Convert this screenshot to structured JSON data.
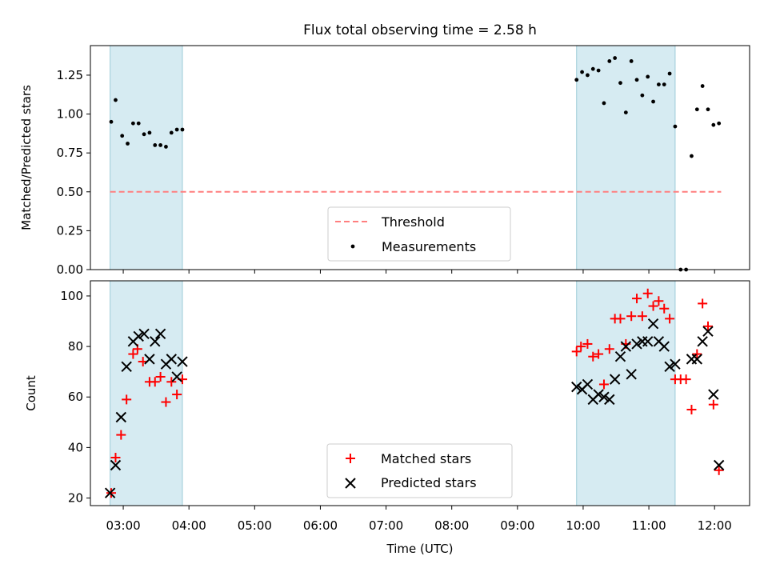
{
  "chart_data": [
    {
      "type": "scatter",
      "title": "Flux total observing time = 2.58 h",
      "ylabel": "Matched/Predicted stars",
      "xlabel": "",
      "xlim": [
        "02:30",
        "12:32"
      ],
      "ylim": [
        0,
        1.44
      ],
      "yticks": [
        "0.00",
        "0.25",
        "0.50",
        "0.75",
        "1.00",
        "1.25"
      ],
      "shaded_intervals": [
        [
          "02:48",
          "03:54"
        ],
        [
          "09:54",
          "11:24"
        ]
      ],
      "legend": {
        "position": "bottom-center",
        "entries": [
          "Threshold",
          "Measurements"
        ]
      },
      "threshold": {
        "name": "Threshold",
        "value": 0.5,
        "x_range": [
          "02:48",
          "12:06"
        ],
        "color": "#ff7f7f",
        "style": "dashed"
      },
      "series": [
        {
          "name": "Measurements",
          "color": "#000000",
          "points": [
            [
              "02:49",
              0.95
            ],
            [
              "02:53",
              1.09
            ],
            [
              "02:59",
              0.86
            ],
            [
              "03:04",
              0.81
            ],
            [
              "03:09",
              0.94
            ],
            [
              "03:14",
              0.94
            ],
            [
              "03:19",
              0.87
            ],
            [
              "03:24",
              0.88
            ],
            [
              "03:29",
              0.8
            ],
            [
              "03:34",
              0.8
            ],
            [
              "03:39",
              0.79
            ],
            [
              "03:44",
              0.88
            ],
            [
              "03:49",
              0.9
            ],
            [
              "03:54",
              0.9
            ],
            [
              "09:54",
              1.22
            ],
            [
              "09:59",
              1.27
            ],
            [
              "10:04",
              1.25
            ],
            [
              "10:09",
              1.29
            ],
            [
              "10:14",
              1.28
            ],
            [
              "10:19",
              1.07
            ],
            [
              "10:24",
              1.34
            ],
            [
              "10:29",
              1.36
            ],
            [
              "10:34",
              1.2
            ],
            [
              "10:39",
              1.01
            ],
            [
              "10:44",
              1.34
            ],
            [
              "10:49",
              1.22
            ],
            [
              "10:54",
              1.12
            ],
            [
              "10:59",
              1.24
            ],
            [
              "11:04",
              1.08
            ],
            [
              "11:09",
              1.19
            ],
            [
              "11:14",
              1.19
            ],
            [
              "11:19",
              1.26
            ],
            [
              "11:24",
              0.92
            ],
            [
              "11:29",
              0.0
            ],
            [
              "11:34",
              0.0
            ],
            [
              "11:39",
              0.73
            ],
            [
              "11:44",
              1.03
            ],
            [
              "11:49",
              1.18
            ],
            [
              "11:54",
              1.03
            ],
            [
              "11:59",
              0.93
            ],
            [
              "12:04",
              0.94
            ]
          ]
        }
      ]
    },
    {
      "type": "scatter",
      "title": "",
      "ylabel": "Count",
      "xlabel": "Time (UTC)",
      "xlim": [
        "02:30",
        "12:32"
      ],
      "ylim": [
        17,
        106
      ],
      "yticks": [
        "20",
        "40",
        "60",
        "80",
        "100"
      ],
      "xticks": [
        "03:00",
        "04:00",
        "05:00",
        "06:00",
        "07:00",
        "08:00",
        "09:00",
        "10:00",
        "11:00",
        "12:00"
      ],
      "shaded_intervals": [
        [
          "02:48",
          "03:54"
        ],
        [
          "09:54",
          "11:24"
        ]
      ],
      "legend": {
        "position": "bottom-center",
        "entries": [
          "Matched stars",
          "Predicted stars"
        ]
      },
      "series": [
        {
          "name": "Matched stars",
          "marker": "plus",
          "color": "#ff0000",
          "points": [
            [
              "02:49",
              22
            ],
            [
              "02:53",
              36
            ],
            [
              "02:58",
              45
            ],
            [
              "03:03",
              59
            ],
            [
              "03:09",
              77
            ],
            [
              "03:13",
              79
            ],
            [
              "03:18",
              74
            ],
            [
              "03:24",
              66
            ],
            [
              "03:29",
              66
            ],
            [
              "03:34",
              68
            ],
            [
              "03:39",
              58
            ],
            [
              "03:44",
              66
            ],
            [
              "03:49",
              61
            ],
            [
              "03:54",
              67
            ],
            [
              "09:54",
              78
            ],
            [
              "09:58",
              80
            ],
            [
              "10:04",
              81
            ],
            [
              "10:09",
              76
            ],
            [
              "10:14",
              77
            ],
            [
              "10:19",
              65
            ],
            [
              "10:24",
              79
            ],
            [
              "10:29",
              91
            ],
            [
              "10:34",
              91
            ],
            [
              "10:39",
              81
            ],
            [
              "10:44",
              92
            ],
            [
              "10:49",
              99
            ],
            [
              "10:54",
              92
            ],
            [
              "10:59",
              101
            ],
            [
              "11:04",
              96
            ],
            [
              "11:09",
              98
            ],
            [
              "11:14",
              95
            ],
            [
              "11:19",
              91
            ],
            [
              "11:24",
              67
            ],
            [
              "11:29",
              67
            ],
            [
              "11:34",
              67
            ],
            [
              "11:39",
              55
            ],
            [
              "11:44",
              77
            ],
            [
              "11:49",
              97
            ],
            [
              "11:54",
              88
            ],
            [
              "11:59",
              57
            ],
            [
              "12:04",
              31
            ]
          ]
        },
        {
          "name": "Predicted stars",
          "marker": "x",
          "color": "#000000",
          "points": [
            [
              "02:48",
              22
            ],
            [
              "02:53",
              33
            ],
            [
              "02:58",
              52
            ],
            [
              "03:03",
              72
            ],
            [
              "03:09",
              82
            ],
            [
              "03:14",
              84
            ],
            [
              "03:19",
              85
            ],
            [
              "03:24",
              75
            ],
            [
              "03:29",
              82
            ],
            [
              "03:34",
              85
            ],
            [
              "03:39",
              73
            ],
            [
              "03:44",
              75
            ],
            [
              "03:49",
              68
            ],
            [
              "03:54",
              74
            ],
            [
              "09:54",
              64
            ],
            [
              "09:59",
              63
            ],
            [
              "10:04",
              65
            ],
            [
              "10:09",
              59
            ],
            [
              "10:14",
              61
            ],
            [
              "10:19",
              60
            ],
            [
              "10:24",
              59
            ],
            [
              "10:29",
              67
            ],
            [
              "10:34",
              76
            ],
            [
              "10:39",
              80
            ],
            [
              "10:44",
              69
            ],
            [
              "10:49",
              81
            ],
            [
              "10:54",
              82
            ],
            [
              "10:59",
              82
            ],
            [
              "11:04",
              89
            ],
            [
              "11:09",
              82
            ],
            [
              "11:14",
              80
            ],
            [
              "11:19",
              72
            ],
            [
              "11:24",
              73
            ],
            [
              "11:39",
              75
            ],
            [
              "11:44",
              75
            ],
            [
              "11:49",
              82
            ],
            [
              "11:54",
              86
            ],
            [
              "11:59",
              61
            ],
            [
              "12:04",
              33
            ]
          ]
        }
      ]
    }
  ]
}
